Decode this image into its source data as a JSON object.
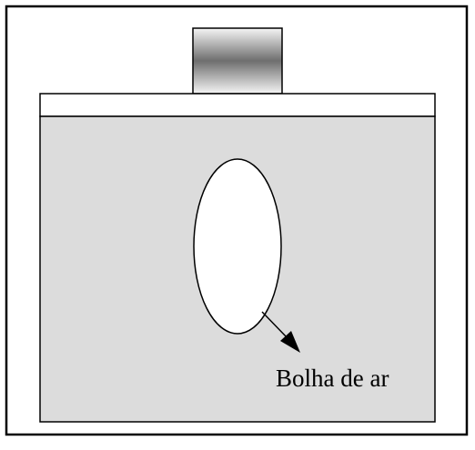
{
  "diagram": {
    "bubble_label": "Bolha de ar",
    "colors": {
      "liquid_fill": "#dcdcdc",
      "stroke": "#000000",
      "background": "#ffffff",
      "bubble_fill": "#ffffff",
      "weight_dark": "#6e6e6e",
      "weight_light": "#f5f5f5"
    }
  }
}
